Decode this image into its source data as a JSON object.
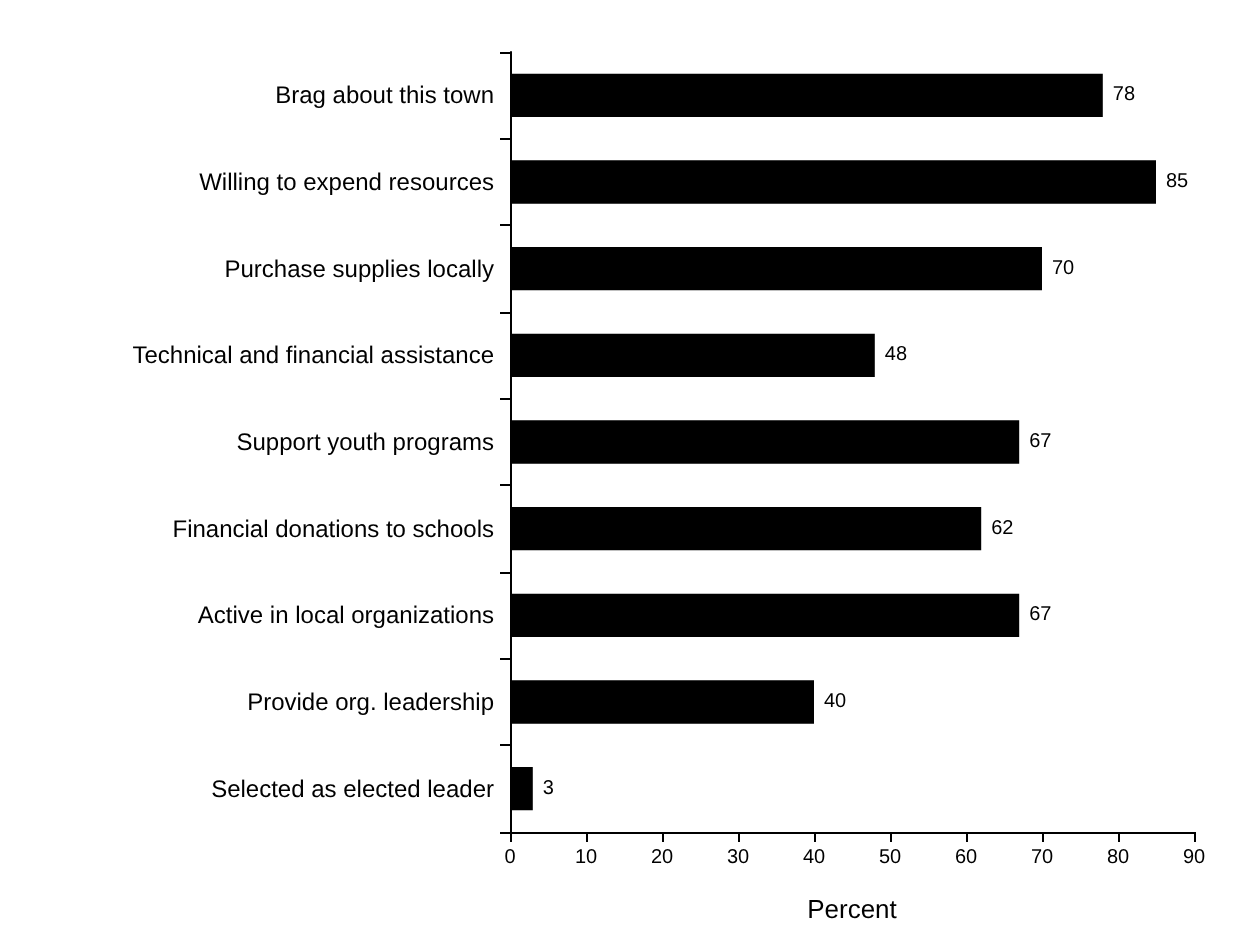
{
  "chart_data": {
    "type": "bar",
    "orientation": "horizontal",
    "xlabel": "Percent",
    "categories": [
      "Brag about this town",
      "Willing to expend resources",
      "Purchase supplies locally",
      "Technical and financial assistance",
      "Support youth programs",
      "Financial donations to schools",
      "Active in local organizations",
      "Provide org. leadership",
      "Selected as elected leader"
    ],
    "values": [
      78,
      85,
      70,
      48,
      67,
      62,
      67,
      40,
      3
    ],
    "color": "#000000",
    "xlim": [
      0,
      90
    ],
    "xticks": [
      0,
      10,
      20,
      30,
      40,
      50,
      60,
      70,
      80,
      90
    ],
    "grid": false,
    "data_labels": true
  }
}
